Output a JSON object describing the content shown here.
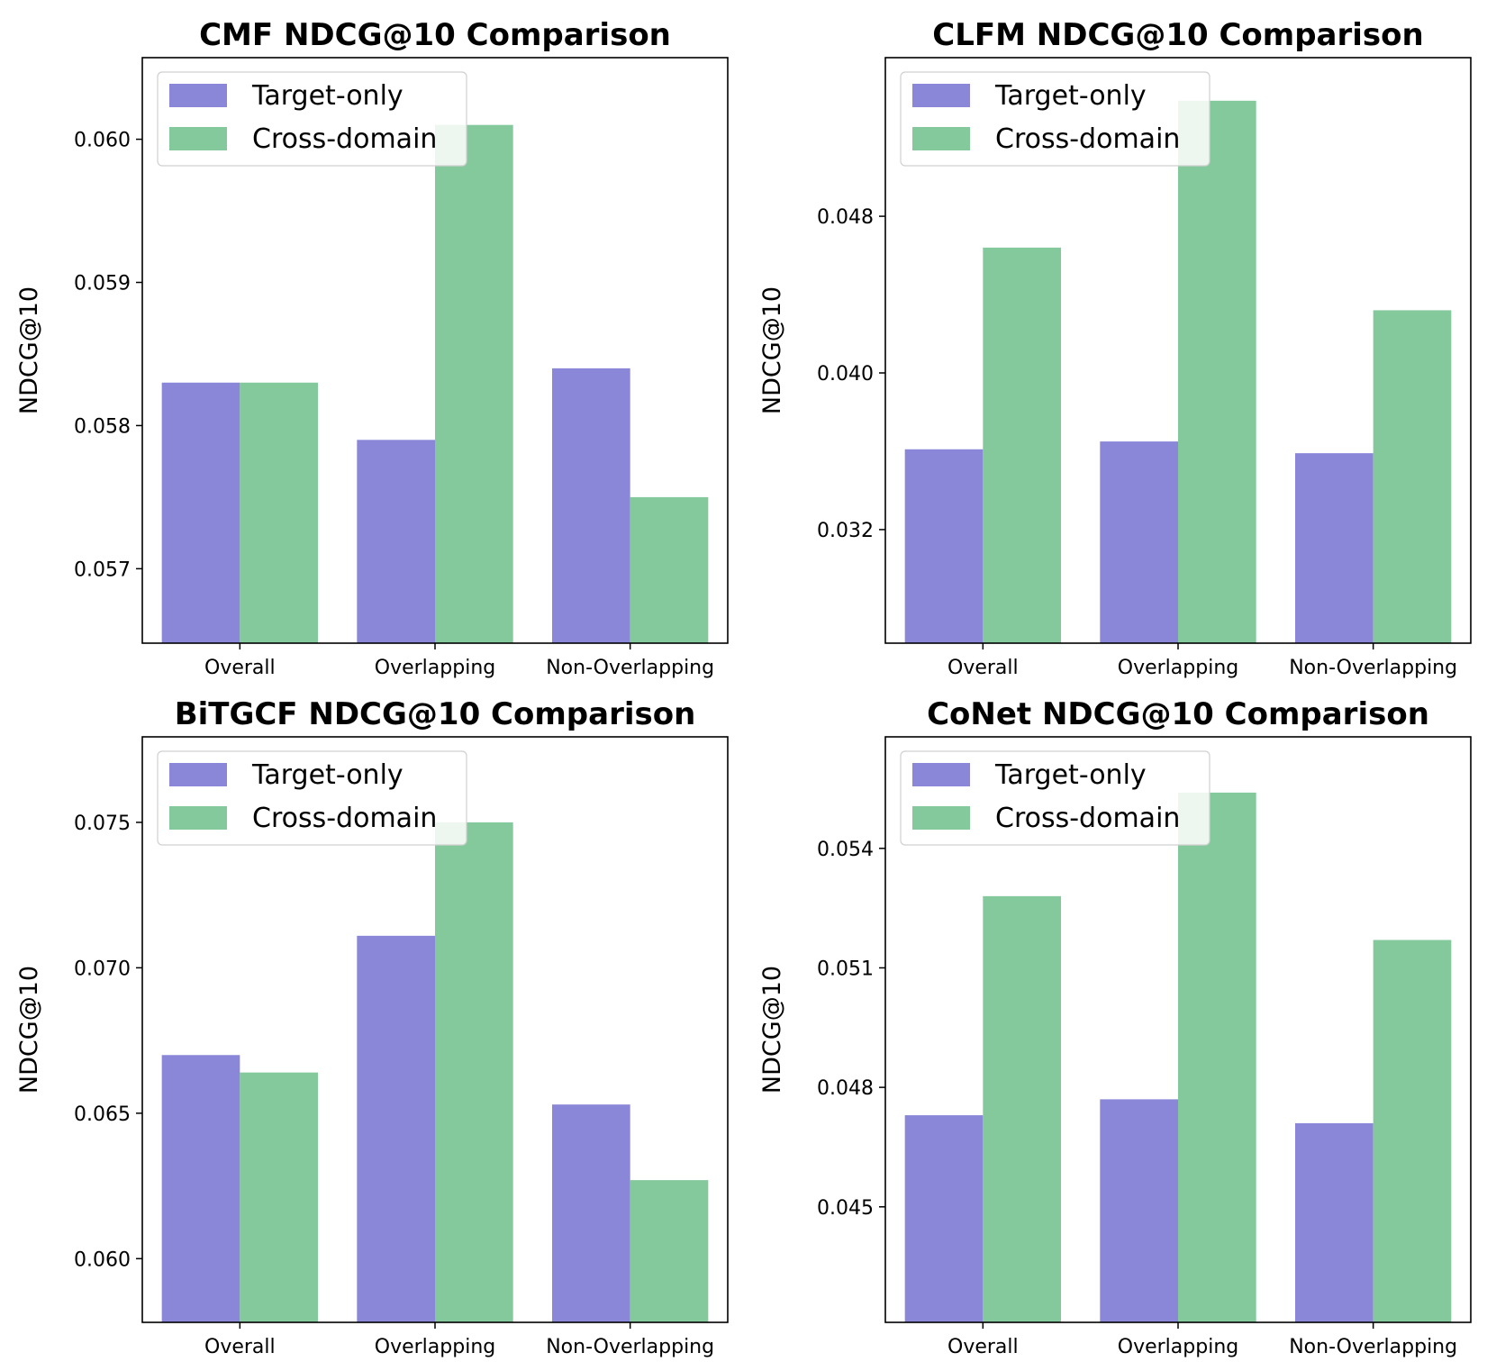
{
  "colors": {
    "target": "#8a87d8",
    "cross": "#84c99c",
    "axis": "#000000",
    "background": "#ffffff"
  },
  "chart_data": [
    {
      "type": "bar",
      "title": "CMF NDCG@10 Comparison",
      "xlabel": "",
      "ylabel": "NDCG@10",
      "categories": [
        "Overall",
        "Overlapping",
        "Non-Overlapping"
      ],
      "series": [
        {
          "name": "Target-only",
          "values": [
            0.0583,
            0.0579,
            0.0584
          ]
        },
        {
          "name": "Cross-domain",
          "values": [
            0.0583,
            0.0601,
            0.0575
          ]
        }
      ],
      "ylim": [
        0.05648,
        0.06057
      ],
      "yticks": [
        0.057,
        0.058,
        0.059,
        0.06
      ],
      "ytick_labels": [
        "0.057",
        "0.058",
        "0.059",
        "0.060"
      ],
      "legend": "top-left",
      "grid": false
    },
    {
      "type": "bar",
      "title": "CLFM NDCG@10 Comparison",
      "xlabel": "",
      "ylabel": "NDCG@10",
      "categories": [
        "Overall",
        "Overlapping",
        "Non-Overlapping"
      ],
      "series": [
        {
          "name": "Target-only",
          "values": [
            0.0361,
            0.0365,
            0.0359
          ]
        },
        {
          "name": "Cross-domain",
          "values": [
            0.0464,
            0.0539,
            0.0432
          ]
        }
      ],
      "ylim": [
        0.0262,
        0.0561
      ],
      "yticks": [
        0.032,
        0.04,
        0.048
      ],
      "ytick_labels": [
        "0.032",
        "0.040",
        "0.048"
      ],
      "legend": "top-left",
      "grid": false
    },
    {
      "type": "bar",
      "title": "BiTGCF NDCG@10 Comparison",
      "xlabel": "",
      "ylabel": "NDCG@10",
      "categories": [
        "Overall",
        "Overlapping",
        "Non-Overlapping"
      ],
      "series": [
        {
          "name": "Target-only",
          "values": [
            0.067,
            0.0711,
            0.0653
          ]
        },
        {
          "name": "Cross-domain",
          "values": [
            0.0664,
            0.075,
            0.0627
          ]
        }
      ],
      "ylim": [
        0.05781,
        0.07794
      ],
      "yticks": [
        0.06,
        0.065,
        0.07,
        0.075
      ],
      "ytick_labels": [
        "0.060",
        "0.065",
        "0.070",
        "0.075"
      ],
      "legend": "top-left",
      "grid": false
    },
    {
      "type": "bar",
      "title": "CoNet NDCG@10 Comparison",
      "xlabel": "",
      "ylabel": "NDCG@10",
      "categories": [
        "Overall",
        "Overlapping",
        "Non-Overlapping"
      ],
      "series": [
        {
          "name": "Target-only",
          "values": [
            0.0473,
            0.0477,
            0.0471
          ]
        },
        {
          "name": "Cross-domain",
          "values": [
            0.0528,
            0.0554,
            0.0517
          ]
        }
      ],
      "ylim": [
        0.0421,
        0.0568
      ],
      "yticks": [
        0.045,
        0.048,
        0.051,
        0.054
      ],
      "ytick_labels": [
        "0.045",
        "0.048",
        "0.051",
        "0.054"
      ],
      "legend": "top-left",
      "grid": false
    }
  ]
}
